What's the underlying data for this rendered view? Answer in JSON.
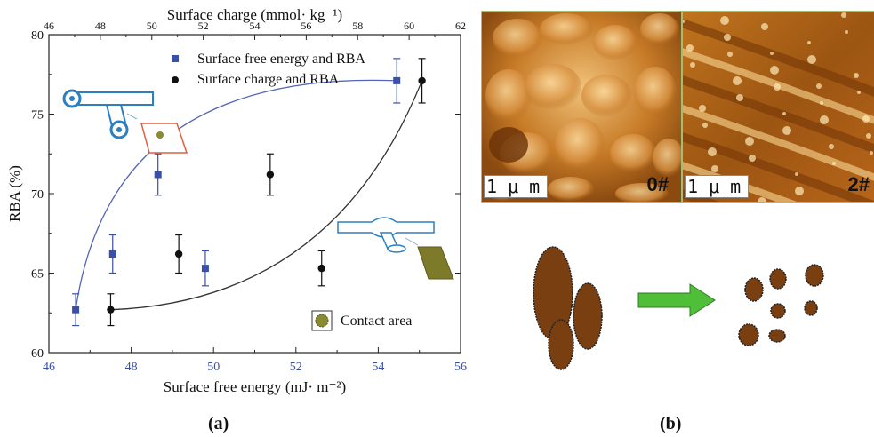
{
  "chart_data": {
    "type": "scatter",
    "top_axis_title": "Surface charge (mmol· kg⁻¹)",
    "bottom_axis_title": "Surface free energy (mJ· m⁻²)",
    "ylabel": "RBA (%)",
    "xlim_bottom": [
      46,
      56
    ],
    "xlim_top": [
      46,
      62
    ],
    "ylim": [
      60,
      80
    ],
    "x_bottom_ticks": [
      "46",
      "48",
      "50",
      "52",
      "54",
      "56"
    ],
    "x_top_ticks": [
      "46",
      "48",
      "50",
      "52",
      "54",
      "56",
      "58",
      "60",
      "62"
    ],
    "y_ticks": [
      "60",
      "65",
      "70",
      "75",
      "80"
    ],
    "series": [
      {
        "name": "Surface free energy and RBA",
        "axis": "bottom",
        "color": "#3a4fa8",
        "marker": "square",
        "x": [
          46.65,
          47.55,
          48.65,
          49.8,
          54.45
        ],
        "y": [
          62.7,
          66.2,
          71.2,
          65.3,
          77.1
        ],
        "err": [
          1.0,
          1.2,
          1.3,
          1.1,
          1.4
        ],
        "fit_color": "#5565b8"
      },
      {
        "name": "Surface charge and RBA",
        "axis": "top",
        "color": "#111111",
        "marker": "circle",
        "x": [
          48.4,
          51.05,
          54.6,
          56.6,
          60.5
        ],
        "y": [
          62.7,
          66.2,
          71.2,
          65.3,
          77.1
        ],
        "err": [
          1.0,
          1.2,
          1.3,
          1.1,
          1.4
        ],
        "fit_color": "#333333"
      }
    ],
    "inset_legend": "Contact  area",
    "caption": "(a)"
  },
  "panel_b": {
    "caption": "(b)",
    "afm_scale": "1 μ m",
    "left_sample": "0#",
    "right_sample": "2#",
    "arrow_color": "#4fbf3a",
    "particle_color": "#7a3f10"
  }
}
